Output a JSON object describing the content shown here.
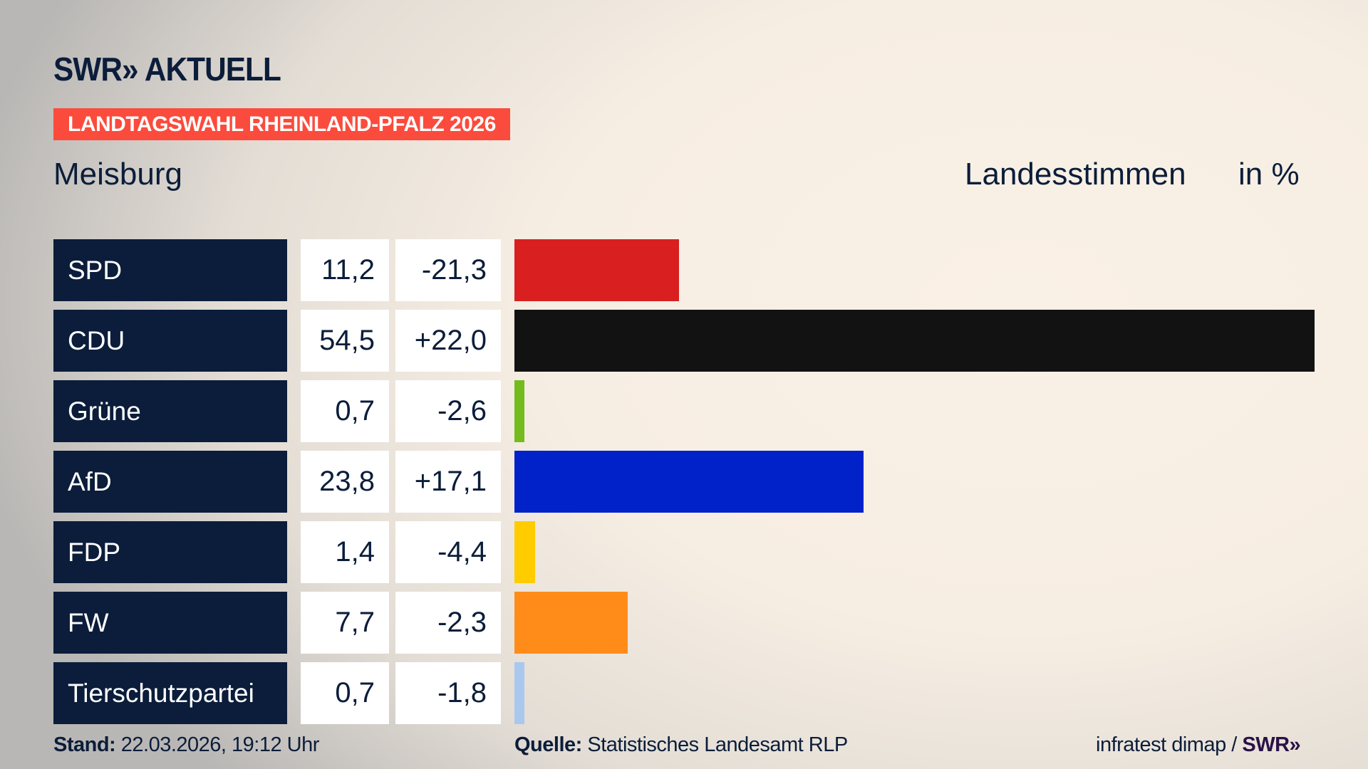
{
  "logo": "SWR» AKTUELL",
  "banner": "LANDTAGSWAHL RHEINLAND-PFALZ 2026",
  "place": "Meisburg",
  "header_label": "Landesstimmen",
  "header_unit": "in %",
  "chart_data": {
    "type": "bar",
    "orientation": "horizontal",
    "categories": [
      "SPD",
      "CDU",
      "Grüne",
      "AfD",
      "FDP",
      "FW",
      "Tierschutzpartei"
    ],
    "values": [
      11.2,
      54.5,
      0.7,
      23.8,
      1.4,
      7.7,
      0.7
    ],
    "values_label": [
      "11,2",
      "54,5",
      "0,7",
      "23,8",
      "1,4",
      "7,7",
      "0,7"
    ],
    "diffs": [
      "-21,3",
      "+22,0",
      "-2,6",
      "+17,1",
      "-4,4",
      "-2,3",
      "-1,8"
    ],
    "colors": [
      "#d91f1f",
      "#121212",
      "#74bb1e",
      "#0022c8",
      "#ffcc00",
      "#ff8c19",
      "#a9c8ee"
    ]
  },
  "footer": {
    "stand_label": "Stand:",
    "stand_value": "22.03.2026, 19:12 Uhr",
    "source_label": "Quelle:",
    "source_value": "Statistisches Landesamt RLP",
    "credit": "infratest dimap /",
    "credit_logo": "SWR»"
  }
}
